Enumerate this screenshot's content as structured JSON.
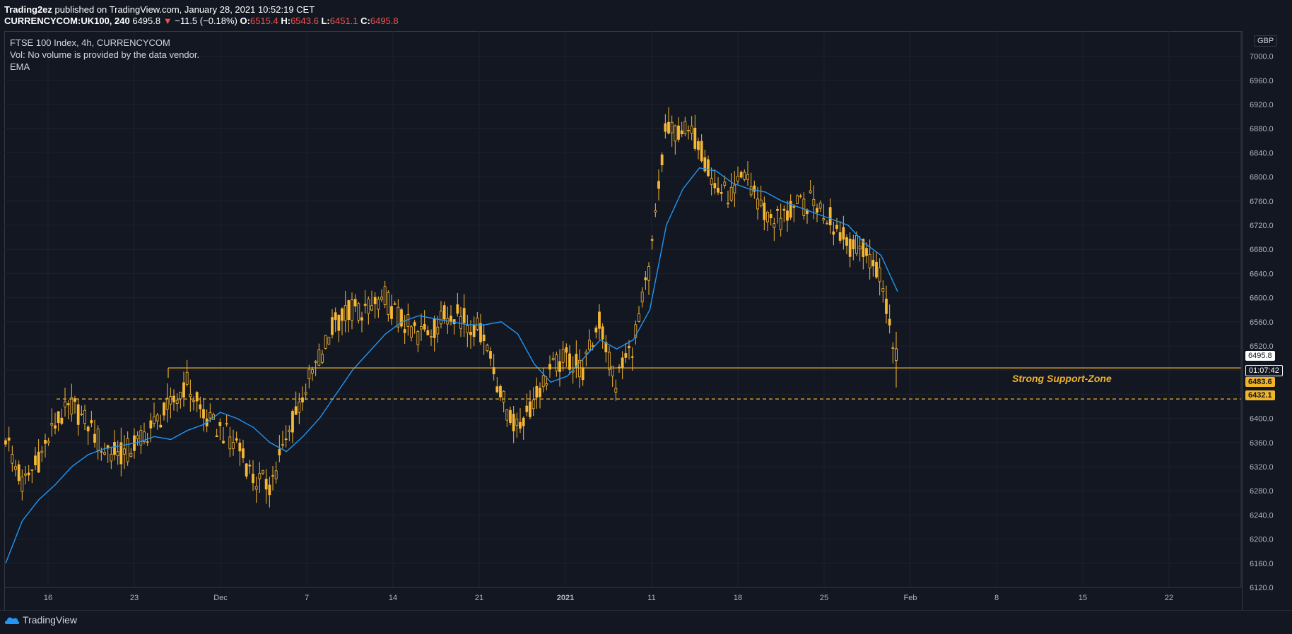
{
  "header": {
    "author": "Trading2ez",
    "published": "published on TradingView.com, January 28, 2021 10:52:19 CET",
    "symbol": "CURRENCYCOM:UK100, 240",
    "last": "6495.8",
    "change": "−11.5 (−0.18%)",
    "o_label": "O:",
    "o": "6515.4",
    "h_label": "H:",
    "h": "6543.6",
    "l_label": "L:",
    "l": "6451.1",
    "c_label": "C:",
    "c": "6495.8"
  },
  "legend": {
    "line1": "FTSE 100 Index, 4h, CURRENCYCOM",
    "line2": "Vol: No volume is provided by the data vendor.",
    "line3": "EMA"
  },
  "currency": "GBP",
  "price_tags": {
    "last": "6495.8",
    "countdown": "01:07:42",
    "support_upper": "6483.6",
    "support_lower": "6432.1"
  },
  "annotation": "Strong Support-Zone",
  "footer": {
    "brand": "TradingView"
  },
  "colors": {
    "candle": "#f7b733",
    "ema": "#2196f3",
    "support": "#f0b429",
    "background": "#131722",
    "grid": "#1e222d",
    "down": "#ef5350"
  },
  "chart_data": {
    "type": "candlestick",
    "title": "FTSE 100 Index, 4h, CURRENCYCOM",
    "ylim": [
      6120,
      7000
    ],
    "y_ticks": [
      6120,
      6160,
      6200,
      6240,
      6280,
      6320,
      6360,
      6400,
      6440,
      6480,
      6520,
      6560,
      6600,
      6640,
      6680,
      6720,
      6760,
      6800,
      6840,
      6880,
      6920,
      6960,
      7000
    ],
    "x_ticks": [
      "16",
      "23",
      "Dec",
      "7",
      "14",
      "21",
      "2021",
      "11",
      "18",
      "25",
      "Feb",
      "8",
      "15",
      "22"
    ],
    "support_levels": [
      6483.6,
      6432.1
    ],
    "series": [
      {
        "name": "EMA",
        "type": "line",
        "values": [
          6160,
          6230,
          6265,
          6290,
          6320,
          6340,
          6350,
          6355,
          6360,
          6370,
          6365,
          6380,
          6390,
          6410,
          6400,
          6385,
          6360,
          6345,
          6370,
          6400,
          6440,
          6480,
          6510,
          6540,
          6560,
          6570,
          6565,
          6560,
          6555,
          6555,
          6560,
          6540,
          6490,
          6460,
          6470,
          6500,
          6530,
          6515,
          6530,
          6580,
          6720,
          6780,
          6815,
          6810,
          6790,
          6780,
          6775,
          6760,
          6750,
          6740,
          6730,
          6720,
          6690,
          6670,
          6610
        ]
      },
      {
        "name": "Price",
        "type": "candlestick",
        "values": [
          6370,
          6290,
          6330,
          6390,
          6420,
          6390,
          6350,
          6340,
          6360,
          6390,
          6420,
          6460,
          6400,
          6380,
          6360,
          6300,
          6290,
          6360,
          6440,
          6500,
          6560,
          6580,
          6580,
          6600,
          6560,
          6540,
          6550,
          6580,
          6560,
          6540,
          6440,
          6380,
          6430,
          6480,
          6500,
          6480,
          6560,
          6460,
          6520,
          6640,
          6870,
          6880,
          6860,
          6780,
          6770,
          6800,
          6740,
          6730,
          6750,
          6760,
          6730,
          6690,
          6680,
          6640,
          6495.8
        ]
      }
    ]
  }
}
